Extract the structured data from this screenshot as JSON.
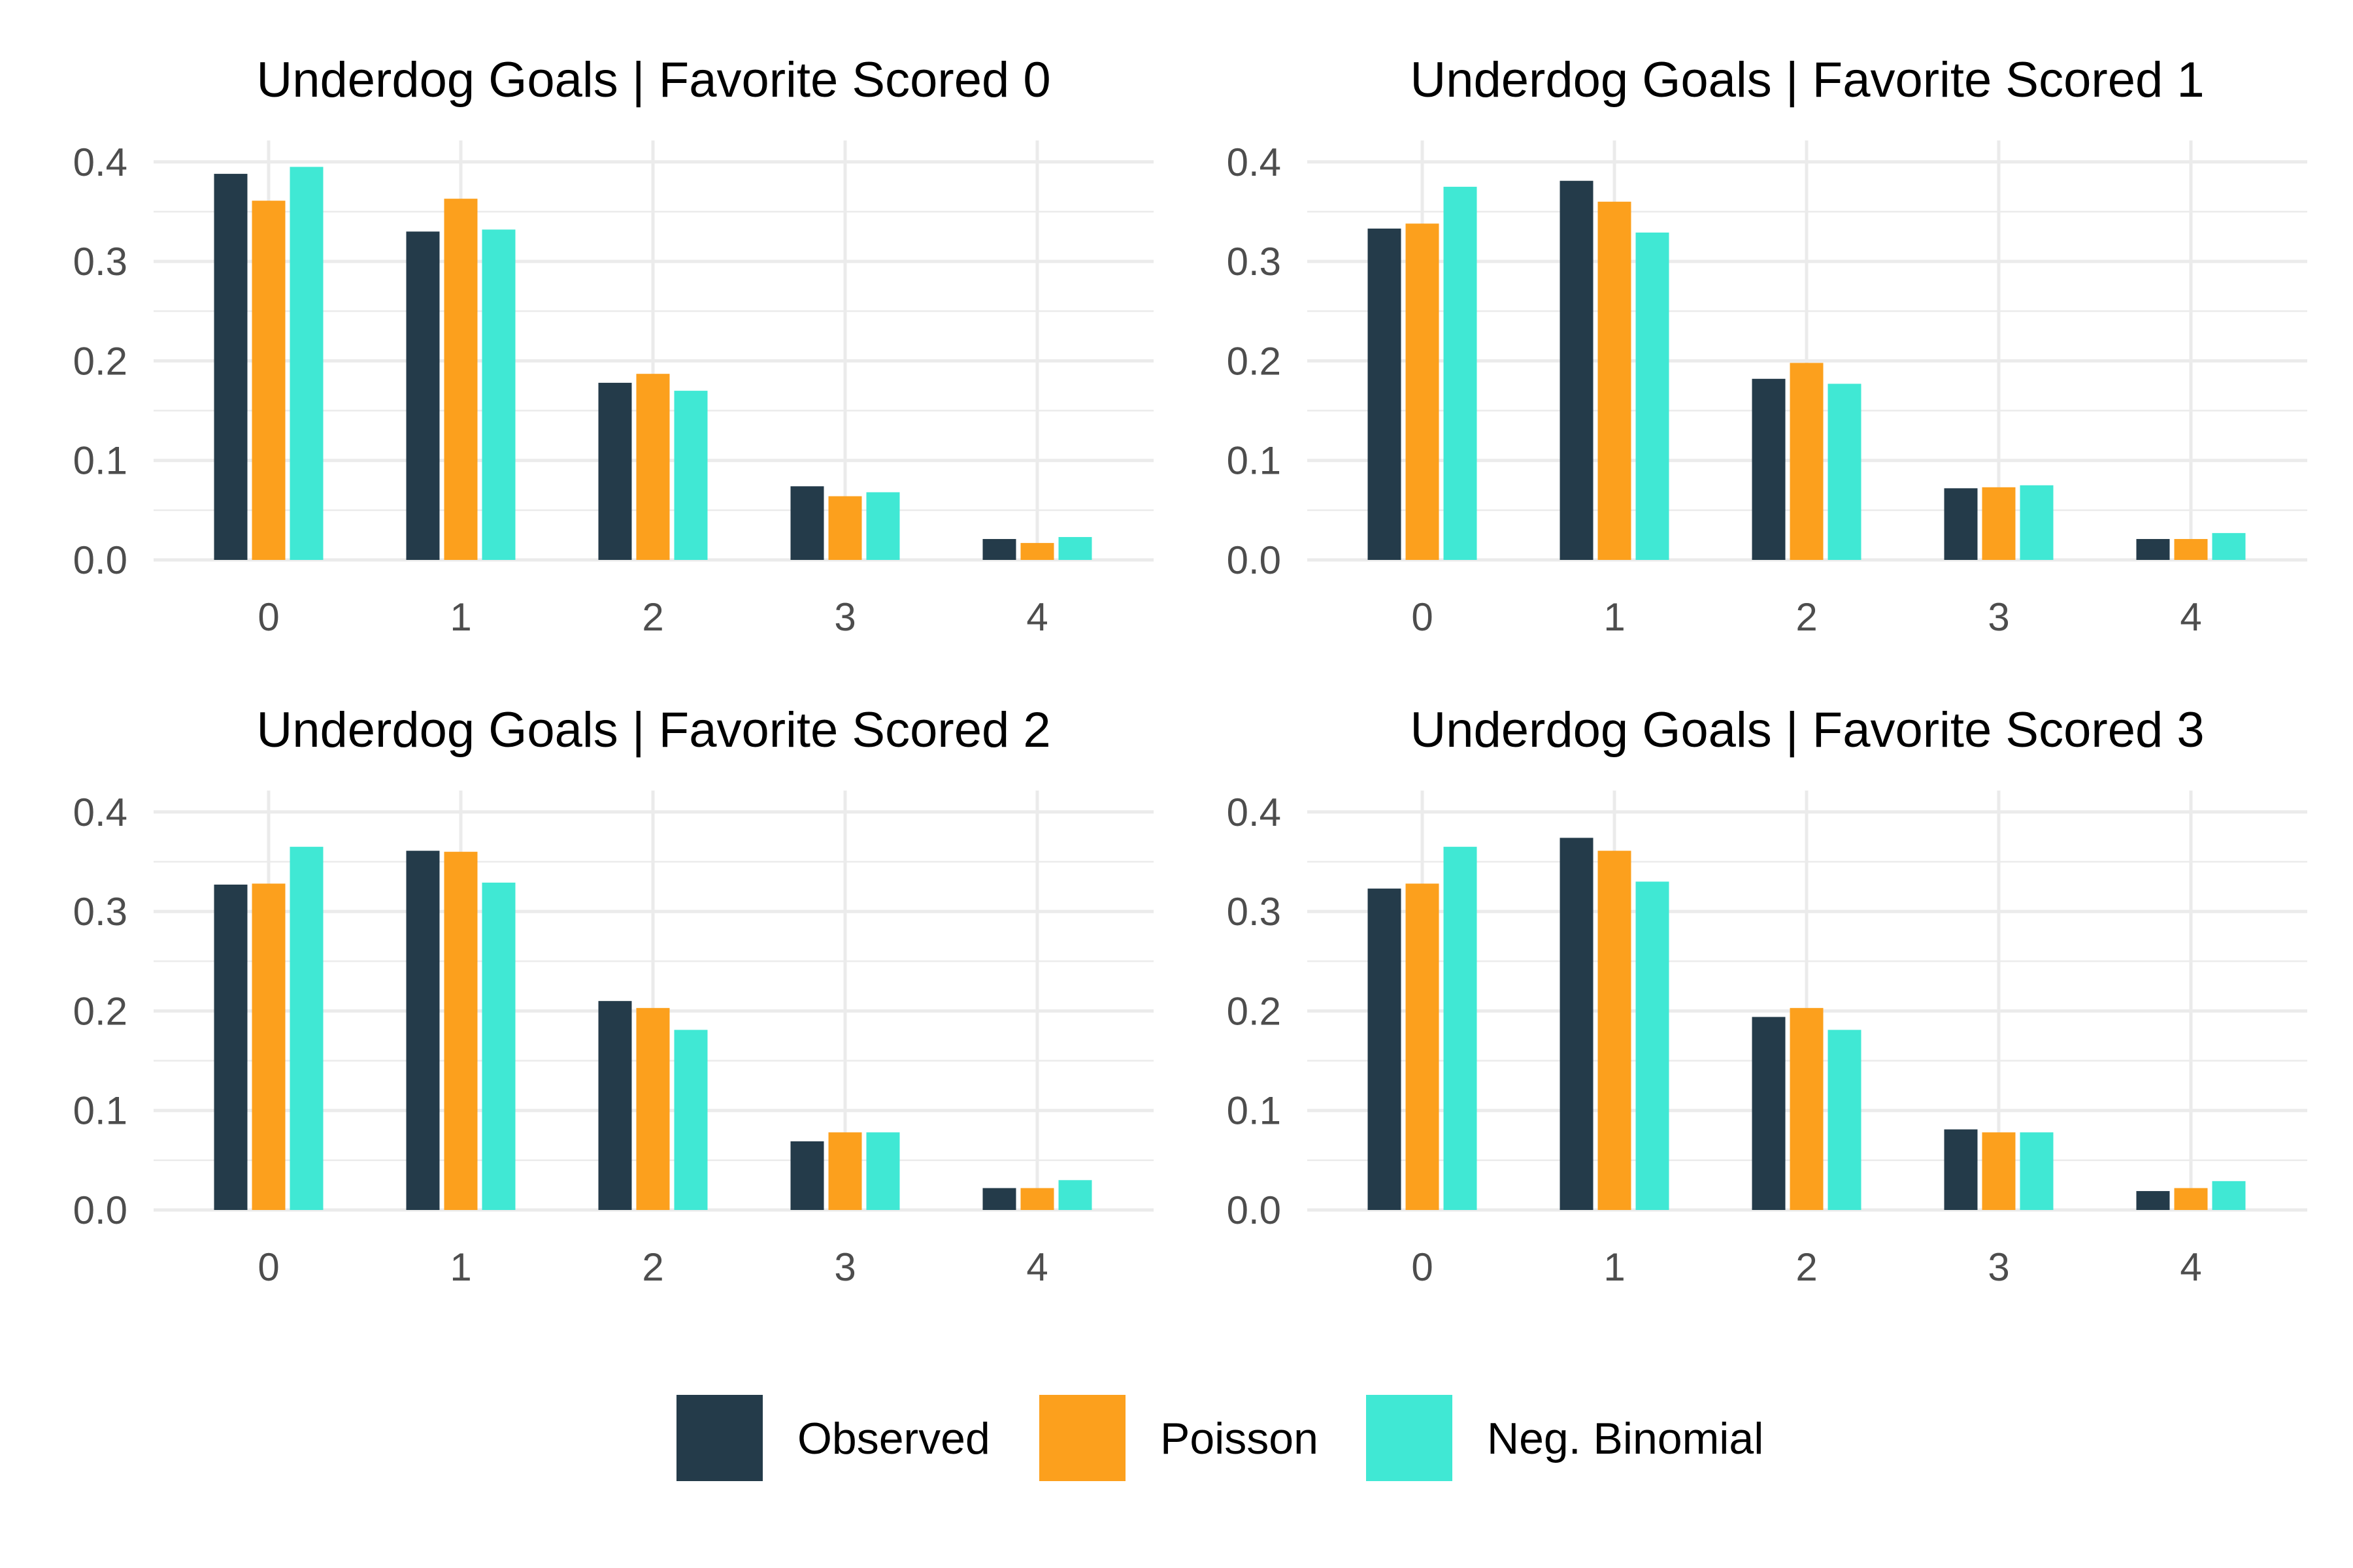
{
  "colors": {
    "observed": "#243b4a",
    "poisson": "#fca01d",
    "negbin": "#40e8d4",
    "grid": "#ebebeb",
    "tick_text": "#4d4d4d"
  },
  "legend": {
    "items": [
      {
        "label": "Observed",
        "color": "#243b4a"
      },
      {
        "label": "Poisson",
        "color": "#fca01d"
      },
      {
        "label": "Neg. Binomial",
        "color": "#40e8d4"
      }
    ]
  },
  "chart_data": [
    {
      "type": "bar",
      "title": "Underdog Goals | Favorite Scored 0",
      "categories": [
        "0",
        "1",
        "2",
        "3",
        "4"
      ],
      "y_ticks": [
        "0.0",
        "0.1",
        "0.2",
        "0.3",
        "0.4"
      ],
      "ylim": [
        0,
        0.42
      ],
      "series": [
        {
          "name": "Observed",
          "values": [
            0.388,
            0.33,
            0.178,
            0.074,
            0.021
          ]
        },
        {
          "name": "Poisson",
          "values": [
            0.361,
            0.363,
            0.187,
            0.064,
            0.017
          ]
        },
        {
          "name": "Neg. Binomial",
          "values": [
            0.395,
            0.332,
            0.17,
            0.068,
            0.023
          ]
        }
      ]
    },
    {
      "type": "bar",
      "title": "Underdog Goals | Favorite Scored 1",
      "categories": [
        "0",
        "1",
        "2",
        "3",
        "4"
      ],
      "y_ticks": [
        "0.0",
        "0.1",
        "0.2",
        "0.3",
        "0.4"
      ],
      "ylim": [
        0,
        0.42
      ],
      "series": [
        {
          "name": "Observed",
          "values": [
            0.333,
            0.381,
            0.182,
            0.072,
            0.021
          ]
        },
        {
          "name": "Poisson",
          "values": [
            0.338,
            0.36,
            0.198,
            0.073,
            0.021
          ]
        },
        {
          "name": "Neg. Binomial",
          "values": [
            0.375,
            0.329,
            0.177,
            0.075,
            0.027
          ]
        }
      ]
    },
    {
      "type": "bar",
      "title": "Underdog Goals | Favorite Scored 2",
      "categories": [
        "0",
        "1",
        "2",
        "3",
        "4"
      ],
      "y_ticks": [
        "0.0",
        "0.1",
        "0.2",
        "0.3",
        "0.4"
      ],
      "ylim": [
        0,
        0.42
      ],
      "series": [
        {
          "name": "Observed",
          "values": [
            0.327,
            0.361,
            0.21,
            0.069,
            0.022
          ]
        },
        {
          "name": "Poisson",
          "values": [
            0.328,
            0.36,
            0.203,
            0.078,
            0.022
          ]
        },
        {
          "name": "Neg. Binomial",
          "values": [
            0.365,
            0.329,
            0.181,
            0.078,
            0.03
          ]
        }
      ]
    },
    {
      "type": "bar",
      "title": "Underdog Goals | Favorite Scored 3",
      "categories": [
        "0",
        "1",
        "2",
        "3",
        "4"
      ],
      "y_ticks": [
        "0.0",
        "0.1",
        "0.2",
        "0.3",
        "0.4"
      ],
      "ylim": [
        0,
        0.42
      ],
      "series": [
        {
          "name": "Observed",
          "values": [
            0.323,
            0.374,
            0.194,
            0.081,
            0.019
          ]
        },
        {
          "name": "Poisson",
          "values": [
            0.328,
            0.361,
            0.203,
            0.078,
            0.022
          ]
        },
        {
          "name": "Neg. Binomial",
          "values": [
            0.365,
            0.33,
            0.181,
            0.078,
            0.029
          ]
        }
      ]
    }
  ]
}
